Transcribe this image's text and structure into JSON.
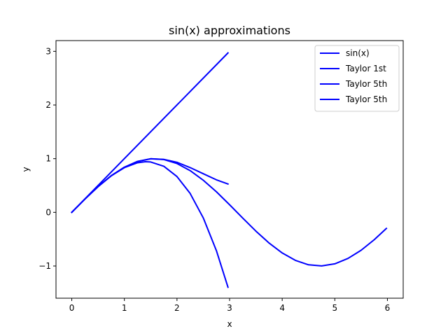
{
  "chart_data": {
    "type": "line",
    "title": "sin(x) approximations",
    "xlabel": "x",
    "ylabel": "y",
    "xlim": [
      -0.3,
      6.3
    ],
    "ylim": [
      -1.6,
      3.2
    ],
    "x_ticks": [
      0,
      1,
      2,
      3,
      4,
      5,
      6
    ],
    "y_ticks": [
      -1,
      0,
      1,
      2,
      3
    ],
    "y_tick_labels": [
      "−1",
      "0",
      "1",
      "2",
      "3"
    ],
    "grid": false,
    "legend_position": "top-right",
    "color": "#0000ff",
    "series": [
      {
        "name": "sin(x)",
        "x": [
          0,
          0.25,
          0.5,
          0.75,
          1.0,
          1.25,
          1.5,
          1.75,
          2.0,
          2.25,
          2.5,
          2.75,
          3.0,
          3.25,
          3.5,
          3.75,
          4.0,
          4.25,
          4.5,
          4.75,
          5.0,
          5.25,
          5.5,
          5.75,
          5.98
        ],
        "y": [
          0,
          0.247,
          0.479,
          0.682,
          0.841,
          0.949,
          0.997,
          0.984,
          0.909,
          0.778,
          0.598,
          0.382,
          0.141,
          -0.108,
          -0.351,
          -0.572,
          -0.757,
          -0.895,
          -0.978,
          -0.999,
          -0.959,
          -0.859,
          -0.706,
          -0.51,
          -0.3
        ]
      },
      {
        "name": "Taylor 1st",
        "x": [
          0,
          2.97
        ],
        "y": [
          0,
          2.97
        ]
      },
      {
        "name": "Taylor 5th",
        "x": [
          0,
          0.25,
          0.5,
          0.75,
          1.0,
          1.25,
          1.5,
          1.75,
          2.0,
          2.25,
          2.5,
          2.75,
          2.97
        ],
        "y": [
          0,
          0.247,
          0.479,
          0.682,
          0.841,
          0.949,
          0.998,
          0.987,
          0.933,
          0.834,
          0.719,
          0.606,
          0.529
        ]
      },
      {
        "name": "Taylor 5th",
        "x": [
          0,
          0.25,
          0.5,
          0.75,
          1.0,
          1.25,
          1.4,
          1.5,
          1.75,
          2.0,
          2.25,
          2.5,
          2.75,
          2.97
        ],
        "y": [
          0,
          0.247,
          0.479,
          0.68,
          0.833,
          0.924,
          0.943,
          0.938,
          0.857,
          0.667,
          0.352,
          -0.104,
          -0.716,
          -1.397
        ]
      }
    ]
  }
}
